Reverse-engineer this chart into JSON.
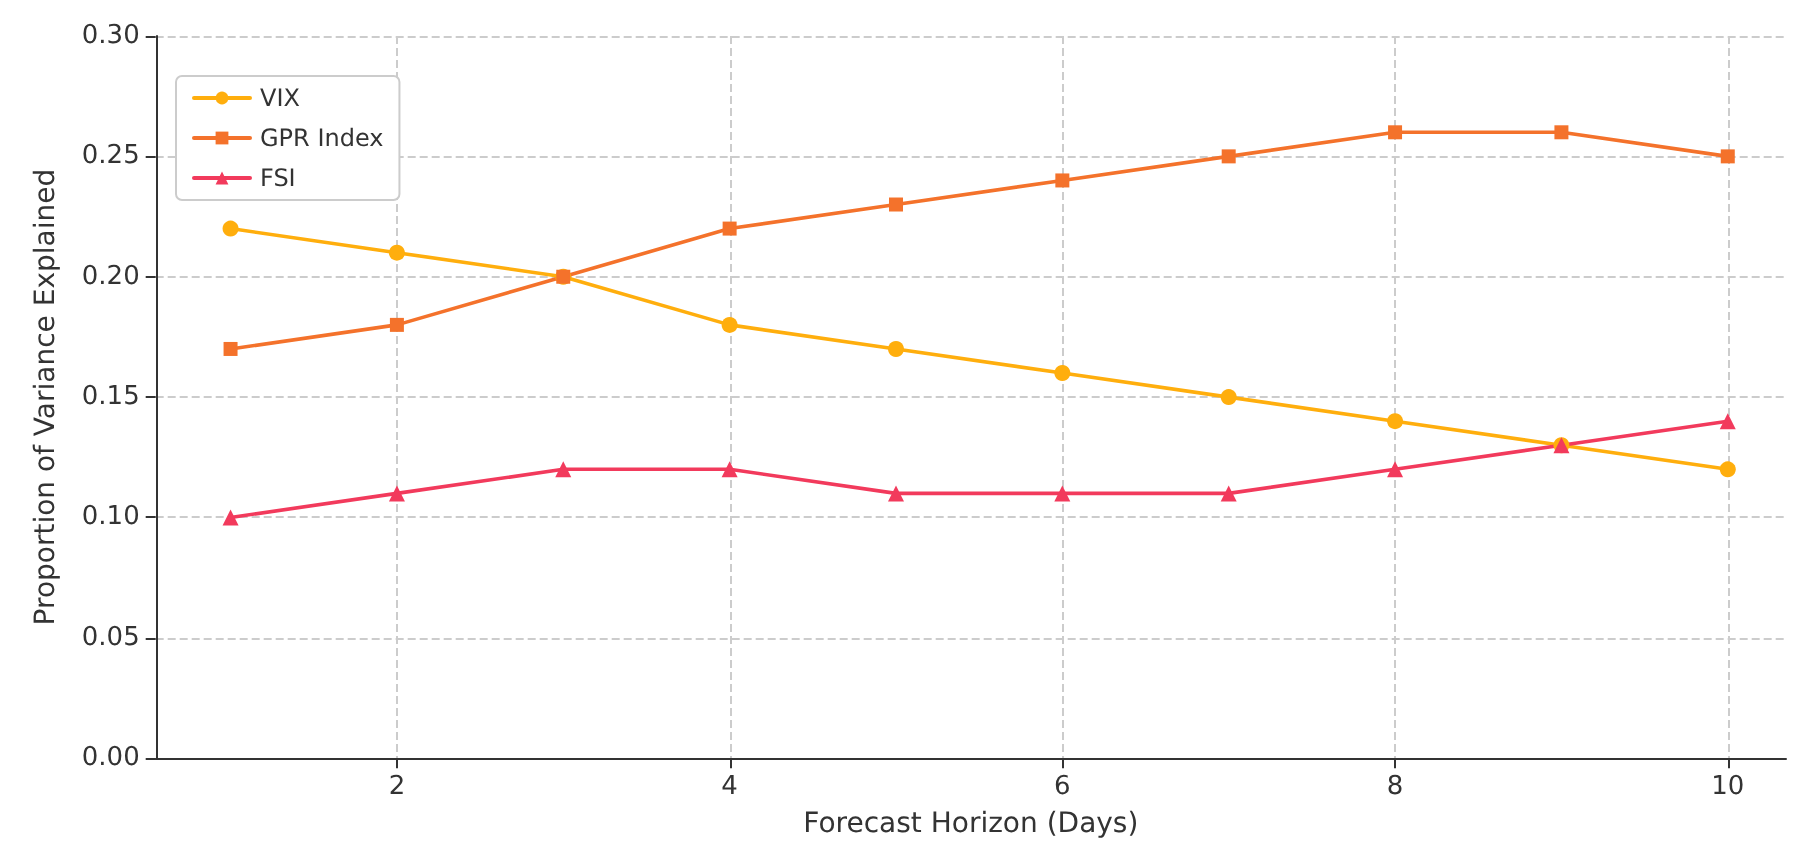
{
  "chart_data": {
    "type": "line",
    "xlabel": "Forecast Horizon (Days)",
    "ylabel": "Proportion of Variance Explained",
    "x": [
      1,
      2,
      3,
      4,
      5,
      6,
      7,
      8,
      9,
      10
    ],
    "series": [
      {
        "name": "VIX",
        "color": "#ffae0d",
        "marker": "circle",
        "values": [
          0.22,
          0.21,
          0.2,
          0.18,
          0.17,
          0.16,
          0.15,
          0.14,
          0.13,
          0.12
        ]
      },
      {
        "name": "GPR Index",
        "color": "#f4722b",
        "marker": "square",
        "values": [
          0.17,
          0.18,
          0.2,
          0.22,
          0.23,
          0.24,
          0.25,
          0.26,
          0.26,
          0.25
        ]
      },
      {
        "name": "FSI",
        "color": "#f23a5c",
        "marker": "triangle",
        "values": [
          0.1,
          0.11,
          0.12,
          0.12,
          0.11,
          0.11,
          0.11,
          0.12,
          0.13,
          0.14
        ]
      }
    ],
    "xlim": [
      0.55,
      10.35
    ],
    "xticks": [
      2,
      4,
      6,
      8,
      10
    ],
    "ylim": [
      0,
      0.3
    ],
    "yticks": [
      {
        "value": 0,
        "label": "0.00"
      },
      0.05,
      {
        "value": 0.1,
        "label": "0.10"
      },
      0.15,
      {
        "value": 0.2,
        "label": "0.20"
      },
      0.25,
      {
        "value": 0.3,
        "label": "0.30"
      }
    ],
    "grid": true,
    "legend": "top left",
    "line_style": "solid"
  }
}
